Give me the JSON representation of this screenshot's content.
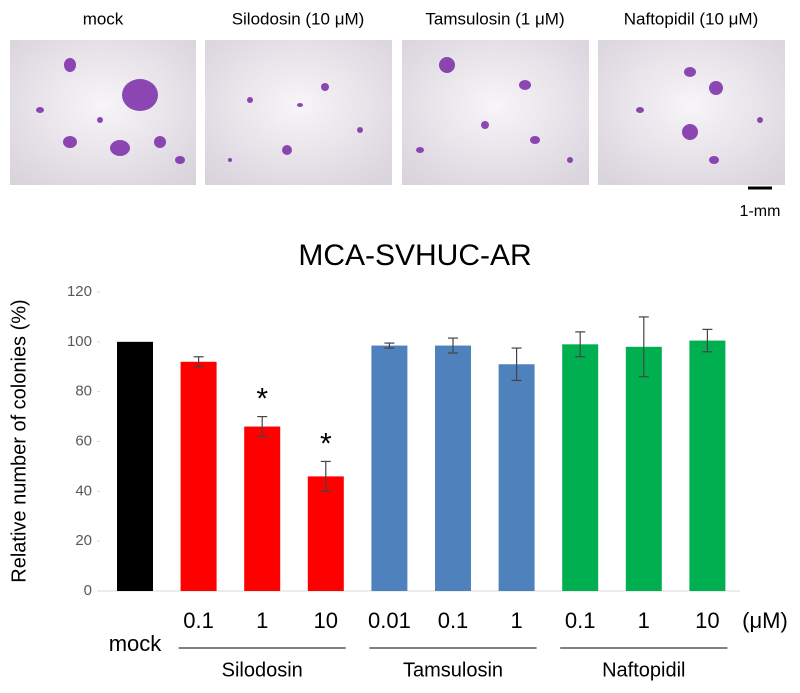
{
  "panels": [
    {
      "label": "mock"
    },
    {
      "label": "Silodosin (10 μM)"
    },
    {
      "label": "Tamsulosin (1 μM)"
    },
    {
      "label": "Naftopidil (10 μM)"
    }
  ],
  "scale_bar": "1-mm",
  "chart_data": {
    "type": "bar",
    "title": "MCA-SVHUC-AR",
    "y_label": "Relative number of colonies (%)",
    "unit": "(μM)",
    "ylim": [
      0,
      120
    ],
    "yticks": [
      0,
      20,
      40,
      60,
      80,
      100,
      120
    ],
    "series": [
      {
        "name": "mock",
        "color": "#000000",
        "doses": [
          null
        ],
        "values": [
          100
        ],
        "errors": [
          0
        ],
        "significance": [
          null
        ]
      },
      {
        "name": "Silodosin",
        "color": "#ff0000",
        "doses": [
          "0.1",
          "1",
          "10"
        ],
        "values": [
          92,
          66,
          46
        ],
        "errors": [
          2,
          4,
          6
        ],
        "significance": [
          null,
          "*",
          "*"
        ]
      },
      {
        "name": "Tamsulosin",
        "color": "#4f81bd",
        "doses": [
          "0.01",
          "0.1",
          "1"
        ],
        "values": [
          98.5,
          98.5,
          91
        ],
        "errors": [
          1,
          3,
          6.5
        ],
        "significance": [
          null,
          null,
          null
        ]
      },
      {
        "name": "Naftopidil",
        "color": "#00b050",
        "doses": [
          "0.1",
          "1",
          "10"
        ],
        "values": [
          99,
          98,
          100.5
        ],
        "errors": [
          5,
          12,
          4.5
        ],
        "significance": [
          null,
          null,
          null
        ]
      }
    ]
  }
}
